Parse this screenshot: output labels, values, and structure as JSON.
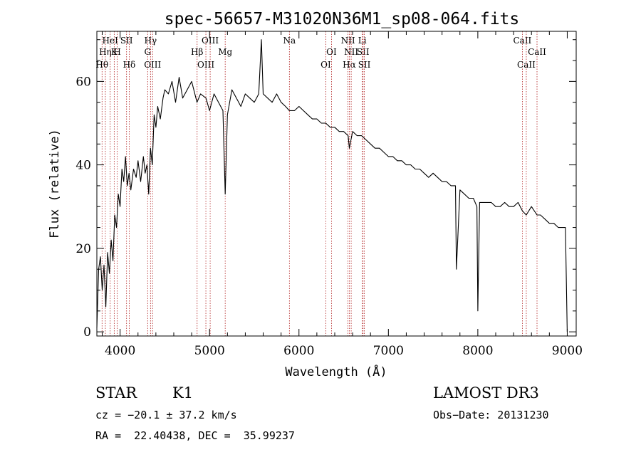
{
  "chart_data": {
    "type": "line",
    "title": "spec-56657-M31020N36M1_sp08-064.fits",
    "xlabel": "Wavelength (Å)",
    "ylabel": "Flux (relative)",
    "xlim": [
      3740,
      9100
    ],
    "ylim": [
      -1,
      72
    ],
    "x_ticks": [
      4000,
      5000,
      6000,
      7000,
      8000,
      9000
    ],
    "y_ticks": [
      0,
      20,
      40,
      60
    ],
    "grid": false,
    "series": [
      {
        "color": "#000000",
        "x": [
          3740,
          3760,
          3780,
          3800,
          3820,
          3840,
          3860,
          3880,
          3900,
          3920,
          3940,
          3960,
          3980,
          4000,
          4020,
          4040,
          4060,
          4080,
          4100,
          4120,
          4150,
          4180,
          4200,
          4230,
          4260,
          4280,
          4300,
          4320,
          4340,
          4360,
          4380,
          4400,
          4420,
          4450,
          4480,
          4500,
          4540,
          4580,
          4620,
          4660,
          4700,
          4750,
          4800,
          4860,
          4900,
          4960,
          5000,
          5050,
          5100,
          5150,
          5175,
          5200,
          5250,
          5300,
          5350,
          5400,
          5450,
          5500,
          5550,
          5580,
          5600,
          5650,
          5700,
          5750,
          5800,
          5850,
          5892,
          5950,
          6000,
          6050,
          6100,
          6150,
          6200,
          6250,
          6300,
          6350,
          6400,
          6450,
          6500,
          6550,
          6563,
          6600,
          6650,
          6700,
          6750,
          6800,
          6850,
          6900,
          6950,
          7000,
          7050,
          7100,
          7150,
          7200,
          7250,
          7300,
          7350,
          7400,
          7450,
          7500,
          7550,
          7600,
          7650,
          7700,
          7750,
          7760,
          7800,
          7850,
          7900,
          7950,
          7990,
          8000,
          8020,
          8050,
          8100,
          8150,
          8200,
          8250,
          8300,
          8350,
          8400,
          8450,
          8498,
          8542,
          8600,
          8662,
          8700,
          8750,
          8800,
          8850,
          8900,
          8950,
          8980,
          9000
        ],
        "y": [
          1,
          15,
          18,
          10,
          16,
          6,
          19,
          14,
          22,
          17,
          28,
          25,
          33,
          30,
          39,
          36,
          42,
          35,
          38,
          34,
          39,
          37,
          41,
          36,
          42,
          38,
          40,
          33,
          44,
          40,
          52,
          49,
          54,
          51,
          56,
          58,
          57,
          60,
          55,
          61,
          56,
          58,
          60,
          55,
          57,
          56,
          53,
          57,
          55,
          53,
          33,
          52,
          58,
          56,
          54,
          57,
          56,
          55,
          57,
          70,
          57,
          56,
          55,
          57,
          55,
          54,
          53,
          53,
          54,
          53,
          52,
          51,
          51,
          50,
          50,
          49,
          49,
          48,
          48,
          47,
          44,
          48,
          47,
          47,
          46,
          45,
          44,
          44,
          43,
          42,
          42,
          41,
          41,
          40,
          40,
          39,
          39,
          38,
          37,
          38,
          37,
          36,
          36,
          35,
          35,
          15,
          34,
          33,
          32,
          32,
          30,
          5,
          31,
          31,
          31,
          31,
          30,
          30,
          31,
          30,
          30,
          31,
          29,
          28,
          30,
          28,
          28,
          27,
          26,
          26,
          25,
          25,
          25,
          0
        ]
      }
    ],
    "lines": [
      {
        "x": 3798,
        "label": "Hθ",
        "row": 3
      },
      {
        "x": 3835,
        "label": "Hη",
        "row": 2
      },
      {
        "x": 3889,
        "label": "HeI",
        "row": 1
      },
      {
        "x": 3934,
        "label": "K",
        "row": 2
      },
      {
        "x": 3968,
        "label": "H",
        "row": 2
      },
      {
        "x": 4072,
        "label": "SII",
        "row": 1
      },
      {
        "x": 4102,
        "label": "Hδ",
        "row": 3
      },
      {
        "x": 4308,
        "label": "G",
        "row": 2
      },
      {
        "x": 4340,
        "label": "Hγ",
        "row": 1
      },
      {
        "x": 4363,
        "label": "OIII",
        "row": 3
      },
      {
        "x": 4861,
        "label": "Hβ",
        "row": 2
      },
      {
        "x": 4959,
        "label": "OIII",
        "row": 3
      },
      {
        "x": 5007,
        "label": "OIII",
        "row": 1
      },
      {
        "x": 5175,
        "label": "Mg",
        "row": 2
      },
      {
        "x": 5893,
        "label": "Na",
        "row": 1
      },
      {
        "x": 6300,
        "label": "OI",
        "row": 3
      },
      {
        "x": 6364,
        "label": "OI",
        "row": 2
      },
      {
        "x": 6548,
        "label": "NII",
        "row": 1
      },
      {
        "x": 6563,
        "label": "Hα",
        "row": 3
      },
      {
        "x": 6584,
        "label": "NII",
        "row": 2
      },
      {
        "x": 6708,
        "label": "Li",
        "row": 1
      },
      {
        "x": 6717,
        "label": "SII",
        "row": 2
      },
      {
        "x": 6731,
        "label": "SII",
        "row": 3
      },
      {
        "x": 8498,
        "label": "CaII",
        "row": 1
      },
      {
        "x": 8542,
        "label": "CaII",
        "row": 3
      },
      {
        "x": 8662,
        "label": "CaII",
        "row": 2
      }
    ]
  },
  "info": {
    "class_label": "STAR",
    "subclass": "K1",
    "survey": "LAMOST DR3",
    "cz_text": "cz = −20.1 ± 37.2 km/s",
    "obs_date": "Obs−Date: 20131230",
    "radec": "RA =  22.40438, DEC =  35.99237"
  }
}
